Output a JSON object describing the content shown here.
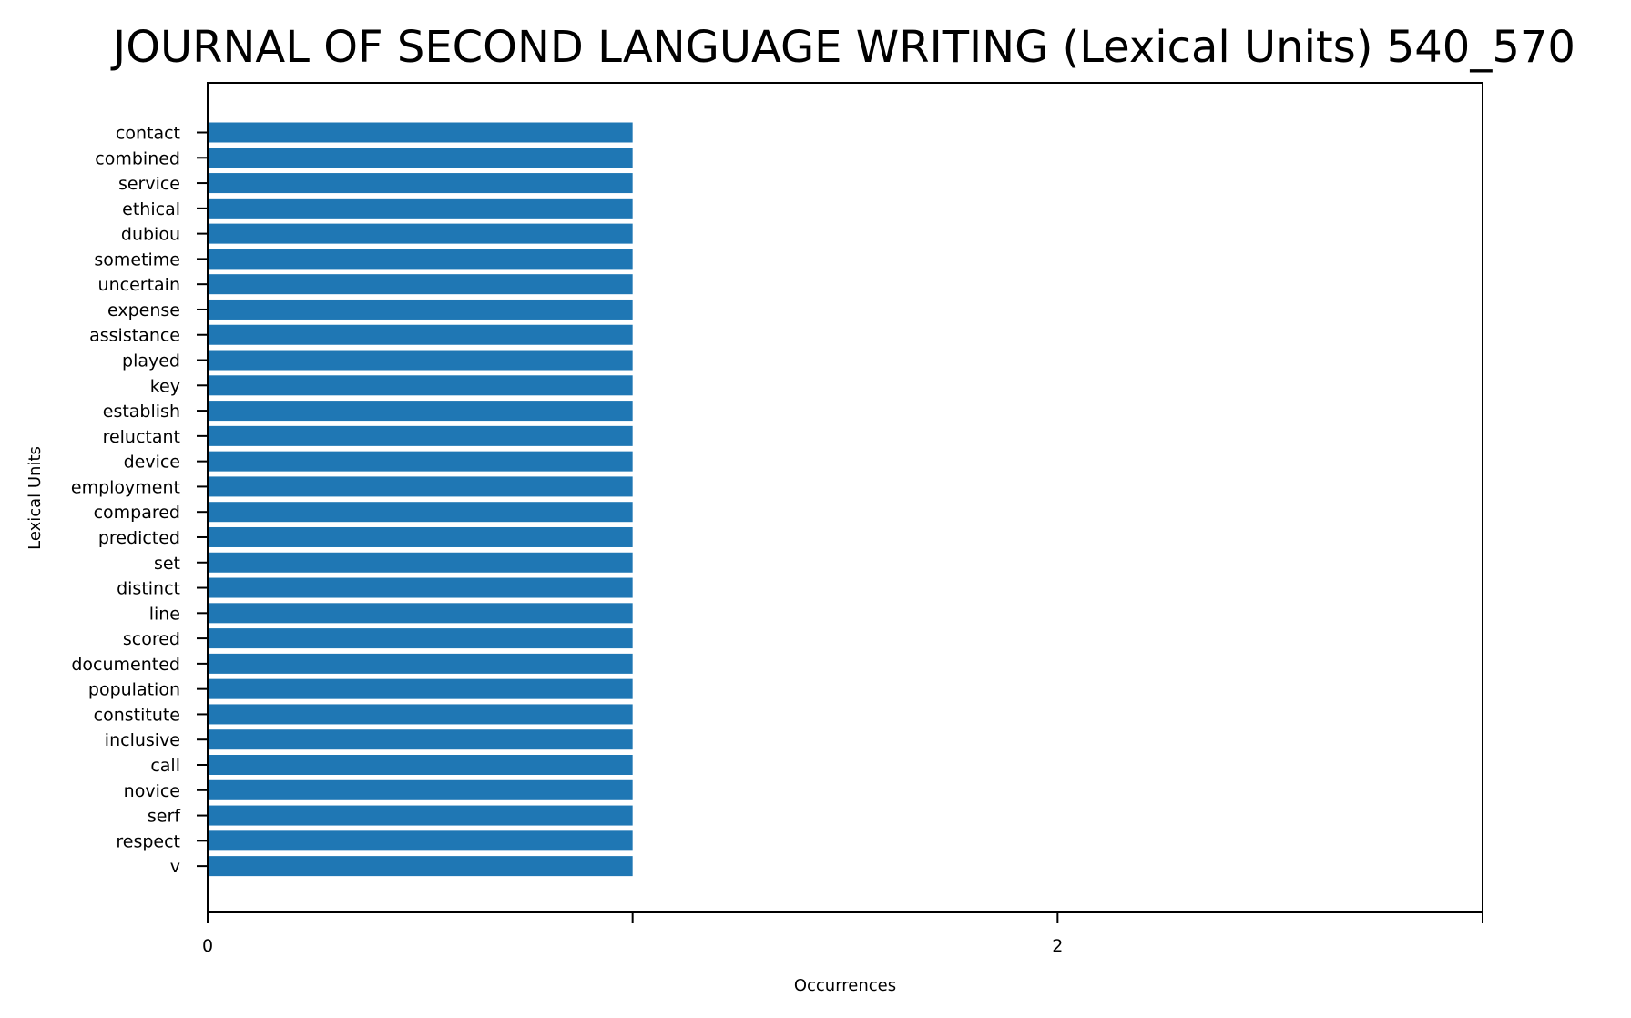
{
  "chart_data": {
    "type": "bar",
    "orientation": "horizontal",
    "title": "JOURNAL OF SECOND LANGUAGE WRITING (Lexical Units) 540_570",
    "xlabel": "Occurrences",
    "ylabel": "Lexical Units",
    "xlim": [
      0,
      3
    ],
    "x_ticks": [
      0,
      1,
      2,
      3
    ],
    "x_tick_labels": [
      "0",
      "",
      "2",
      ""
    ],
    "grid": false,
    "legend": "none",
    "bar_color": "#1f77b4",
    "categories": [
      "contact",
      "combined",
      "service",
      "ethical",
      "dubiou",
      "sometime",
      "uncertain",
      "expense",
      "assistance",
      "played",
      "key",
      "establish",
      "reluctant",
      "device",
      "employment",
      "compared",
      "predicted",
      "set",
      "distinct",
      "line",
      "scored",
      "documented",
      "population",
      "constitute",
      "inclusive",
      "call",
      "novice",
      "serf",
      "respect",
      "v"
    ],
    "values": [
      1,
      1,
      1,
      1,
      1,
      1,
      1,
      1,
      1,
      1,
      1,
      1,
      1,
      1,
      1,
      1,
      1,
      1,
      1,
      1,
      1,
      1,
      1,
      1,
      1,
      1,
      1,
      1,
      1,
      1
    ]
  }
}
